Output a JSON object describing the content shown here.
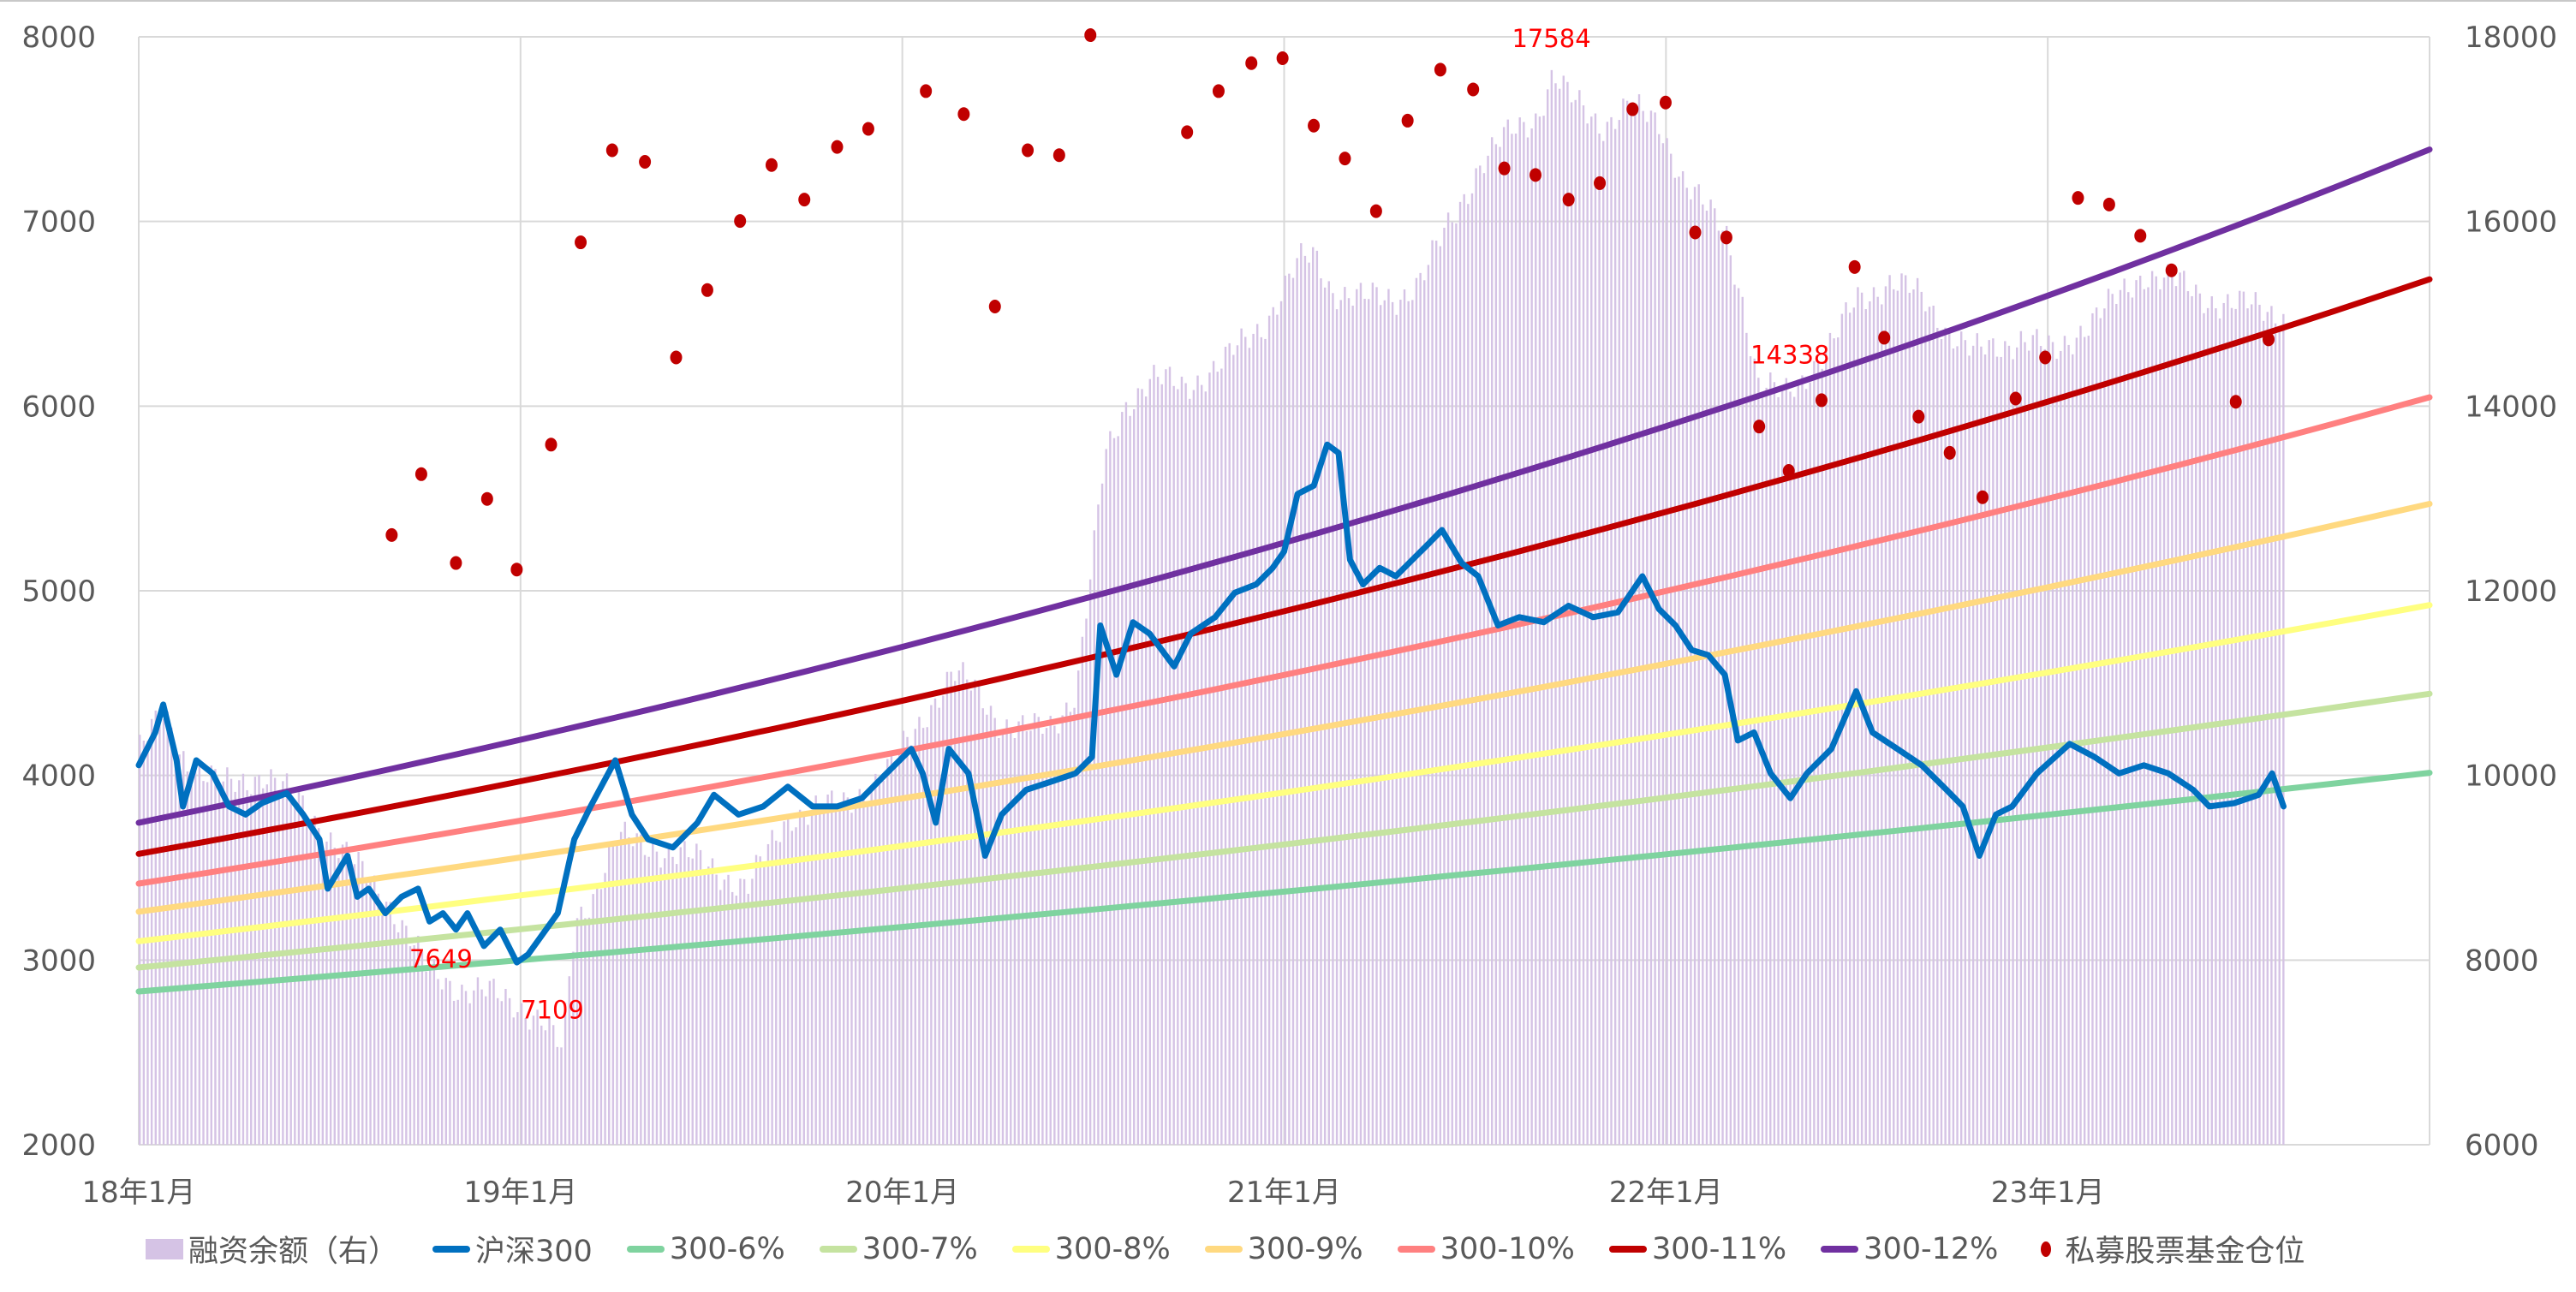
{
  "chart_data": {
    "type": "line",
    "title": "",
    "x_axis": {
      "unit": "months since 2018-01",
      "range": [
        0,
        72
      ],
      "ticks": [
        {
          "month": 0,
          "label": "18年1月"
        },
        {
          "month": 12,
          "label": "19年1月"
        },
        {
          "month": 24,
          "label": "20年1月"
        },
        {
          "month": 36,
          "label": "21年1月"
        },
        {
          "month": 48,
          "label": "22年1月"
        },
        {
          "month": 60,
          "label": "23年1月"
        }
      ]
    },
    "y_left": {
      "range": [
        2000,
        8000
      ],
      "ticks": [
        2000,
        3000,
        4000,
        5000,
        6000,
        7000,
        8000
      ]
    },
    "y_right": {
      "range": [
        6000,
        18000
      ],
      "ticks": [
        6000,
        8000,
        10000,
        12000,
        14000,
        16000,
        18000
      ]
    },
    "grid": true,
    "legend_position": "bottom",
    "series": [
      {
        "name": "融资余额（右）",
        "type": "bar",
        "axis": "right",
        "color": "#d5c3e5",
        "points": [
          [
            0,
            10289
          ],
          [
            0.77,
            10645
          ],
          [
            1.55,
            10111
          ],
          [
            2.58,
            9879
          ],
          [
            3.87,
            10022
          ],
          [
            5.17,
            9665
          ],
          [
            6.46,
            9131
          ],
          [
            7.75,
            8686
          ],
          [
            9.04,
            7885
          ],
          [
            10.07,
            7707
          ],
          [
            11.1,
            7618
          ],
          [
            11.88,
            7529
          ],
          [
            12.65,
            7350
          ],
          [
            13.27,
            6994
          ],
          [
            13.69,
            8419
          ],
          [
            14.2,
            8686
          ],
          [
            14.98,
            9309
          ],
          [
            16.27,
            9220
          ],
          [
            17.82,
            9042
          ],
          [
            19.11,
            8775
          ],
          [
            20.4,
            9576
          ],
          [
            21.95,
            9665
          ],
          [
            23.5,
            10022
          ],
          [
            24.79,
            10734
          ],
          [
            25.57,
            11090
          ],
          [
            26.34,
            10912
          ],
          [
            27.12,
            10556
          ],
          [
            27.89,
            10467
          ],
          [
            28.67,
            10556
          ],
          [
            29.44,
            10912
          ],
          [
            29.96,
            12337
          ],
          [
            30.32,
            13405
          ],
          [
            30.99,
            14029
          ],
          [
            31.77,
            14296
          ],
          [
            32.8,
            14207
          ],
          [
            34.09,
            14474
          ],
          [
            35.38,
            14919
          ],
          [
            36.42,
            15542
          ],
          [
            36.93,
            15631
          ],
          [
            37.45,
            15275
          ],
          [
            38.48,
            15150
          ],
          [
            39.51,
            15186
          ],
          [
            40.29,
            15364
          ],
          [
            41.06,
            15898
          ],
          [
            42.1,
            16611
          ],
          [
            43.13,
            16967
          ],
          [
            43.9,
            17145
          ],
          [
            44.42,
            17590
          ],
          [
            44.94,
            17323
          ],
          [
            45.97,
            17056
          ],
          [
            46.75,
            17234
          ],
          [
            47.78,
            17056
          ],
          [
            48.55,
            16433
          ],
          [
            49.33,
            16077
          ],
          [
            49.85,
            15898
          ],
          [
            50.36,
            15186
          ],
          [
            50.88,
            14207
          ],
          [
            51.65,
            14118
          ],
          [
            52.43,
            14385
          ],
          [
            53.2,
            14652
          ],
          [
            53.98,
            15186
          ],
          [
            55.01,
            15329
          ],
          [
            56.04,
            15186
          ],
          [
            56.82,
            14830
          ],
          [
            57.59,
            14563
          ],
          [
            58.37,
            14652
          ],
          [
            59.14,
            14741
          ],
          [
            60.17,
            14563
          ],
          [
            60.95,
            14830
          ],
          [
            61.98,
            15097
          ],
          [
            63.02,
            15453
          ],
          [
            63.79,
            15364
          ],
          [
            64.82,
            15186
          ],
          [
            65.86,
            15097
          ],
          [
            67.41,
            15008
          ]
        ]
      },
      {
        "name": "沪深300",
        "type": "line",
        "axis": "left",
        "color": "#0070c0",
        "points": [
          [
            0,
            4055
          ],
          [
            0.52,
            4233
          ],
          [
            0.77,
            4384
          ],
          [
            1.19,
            4082
          ],
          [
            1.39,
            3832
          ],
          [
            1.81,
            4082
          ],
          [
            2.32,
            4011
          ],
          [
            2.84,
            3832
          ],
          [
            3.36,
            3788
          ],
          [
            3.87,
            3850
          ],
          [
            4.65,
            3904
          ],
          [
            5.17,
            3788
          ],
          [
            5.68,
            3654
          ],
          [
            5.94,
            3387
          ],
          [
            6.56,
            3565
          ],
          [
            6.87,
            3343
          ],
          [
            7.23,
            3387
          ],
          [
            7.75,
            3254
          ],
          [
            8.26,
            3343
          ],
          [
            8.78,
            3387
          ],
          [
            9.14,
            3209
          ],
          [
            9.56,
            3254
          ],
          [
            9.97,
            3165
          ],
          [
            10.33,
            3254
          ],
          [
            10.85,
            3076
          ],
          [
            11.36,
            3165
          ],
          [
            11.88,
            2987
          ],
          [
            12.24,
            3031
          ],
          [
            13.17,
            3254
          ],
          [
            13.69,
            3654
          ],
          [
            14.2,
            3832
          ],
          [
            14.98,
            4082
          ],
          [
            15.5,
            3788
          ],
          [
            16.01,
            3654
          ],
          [
            16.79,
            3610
          ],
          [
            17.56,
            3744
          ],
          [
            18.08,
            3895
          ],
          [
            18.85,
            3788
          ],
          [
            19.63,
            3832
          ],
          [
            20.4,
            3939
          ],
          [
            21.18,
            3832
          ],
          [
            21.95,
            3832
          ],
          [
            22.73,
            3877
          ],
          [
            23.5,
            4011
          ],
          [
            24.28,
            4144
          ],
          [
            24.64,
            4011
          ],
          [
            25.05,
            3744
          ],
          [
            25.46,
            4144
          ],
          [
            26.08,
            4011
          ],
          [
            26.6,
            3565
          ],
          [
            27.12,
            3788
          ],
          [
            27.89,
            3922
          ],
          [
            28.67,
            3966
          ],
          [
            29.44,
            4011
          ],
          [
            29.96,
            4100
          ],
          [
            30.22,
            4812
          ],
          [
            30.73,
            4545
          ],
          [
            31.25,
            4830
          ],
          [
            31.77,
            4768
          ],
          [
            32.54,
            4590
          ],
          [
            33.06,
            4768
          ],
          [
            33.83,
            4857
          ],
          [
            34.45,
            4990
          ],
          [
            35.12,
            5035
          ],
          [
            35.64,
            5124
          ],
          [
            36,
            5213
          ],
          [
            36.42,
            5524
          ],
          [
            36.93,
            5569
          ],
          [
            37.35,
            5792
          ],
          [
            37.71,
            5747
          ],
          [
            38.07,
            5168
          ],
          [
            38.48,
            5035
          ],
          [
            39,
            5124
          ],
          [
            39.51,
            5079
          ],
          [
            40.03,
            5168
          ],
          [
            40.55,
            5257
          ],
          [
            40.96,
            5329
          ],
          [
            41.58,
            5150
          ],
          [
            42.1,
            5079
          ],
          [
            42.72,
            4812
          ],
          [
            43.39,
            4857
          ],
          [
            44.16,
            4830
          ],
          [
            44.94,
            4919
          ],
          [
            45.71,
            4857
          ],
          [
            46.49,
            4883
          ],
          [
            47.26,
            5079
          ],
          [
            47.78,
            4901
          ],
          [
            48.3,
            4812
          ],
          [
            48.81,
            4679
          ],
          [
            49.33,
            4652
          ],
          [
            49.85,
            4545
          ],
          [
            50.26,
            4189
          ],
          [
            50.77,
            4233
          ],
          [
            51.29,
            4011
          ],
          [
            51.91,
            3877
          ],
          [
            52.43,
            4011
          ],
          [
            53.2,
            4144
          ],
          [
            53.98,
            4456
          ],
          [
            54.49,
            4233
          ],
          [
            55.27,
            4144
          ],
          [
            56.04,
            4055
          ],
          [
            56.82,
            3922
          ],
          [
            57.33,
            3832
          ],
          [
            57.85,
            3565
          ],
          [
            58.37,
            3788
          ],
          [
            58.88,
            3832
          ],
          [
            59.66,
            4011
          ],
          [
            60.69,
            4171
          ],
          [
            61.47,
            4100
          ],
          [
            62.24,
            4011
          ],
          [
            63.02,
            4055
          ],
          [
            63.79,
            4011
          ],
          [
            64.57,
            3922
          ],
          [
            65.08,
            3832
          ],
          [
            65.86,
            3850
          ],
          [
            66.63,
            3895
          ],
          [
            67.05,
            4011
          ],
          [
            67.41,
            3832
          ]
        ]
      },
      {
        "name": "300-6%",
        "type": "growth",
        "axis": "left",
        "color": "#7fd39f",
        "rate": 0.06,
        "start": 2830,
        "range_months": [
          0,
          72
        ]
      },
      {
        "name": "300-7%",
        "type": "growth",
        "axis": "left",
        "color": "#c5e3a0",
        "rate": 0.07,
        "start": 2960,
        "range_months": [
          0,
          72
        ]
      },
      {
        "name": "300-8%",
        "type": "growth",
        "axis": "left",
        "color": "#ffff80",
        "rate": 0.08,
        "start": 3102,
        "range_months": [
          0,
          72
        ]
      },
      {
        "name": "300-9%",
        "type": "growth",
        "axis": "left",
        "color": "#ffd980",
        "rate": 0.09,
        "start": 3262,
        "range_months": [
          0,
          72
        ]
      },
      {
        "name": "300-10%",
        "type": "growth",
        "axis": "left",
        "color": "#ff8080",
        "rate": 0.1,
        "start": 3414,
        "range_months": [
          0,
          72
        ]
      },
      {
        "name": "300-11%",
        "type": "growth",
        "axis": "left",
        "color": "#c00000",
        "rate": 0.11,
        "start": 3575,
        "range_months": [
          0,
          72
        ]
      },
      {
        "name": "300-12%",
        "type": "growth",
        "axis": "left",
        "color": "#7030a0",
        "rate": 0.12,
        "start": 3744,
        "range_months": [
          0,
          72
        ]
      },
      {
        "name": "私募股票基金仓位",
        "type": "scatter",
        "axis": "right",
        "color": "#c00000",
        "points": [
          [
            7.95,
            12604
          ],
          [
            8.88,
            13263
          ],
          [
            9.97,
            12301
          ],
          [
            10.95,
            12995
          ],
          [
            11.88,
            12230
          ],
          [
            12.96,
            13583
          ],
          [
            13.89,
            15774
          ],
          [
            14.88,
            16771
          ],
          [
            15.91,
            16646
          ],
          [
            16.89,
            14527
          ],
          [
            17.87,
            15257
          ],
          [
            18.9,
            16005
          ],
          [
            19.89,
            16611
          ],
          [
            20.92,
            16237
          ],
          [
            21.95,
            16807
          ],
          [
            22.93,
            17003
          ],
          [
            24.74,
            17412
          ],
          [
            25.93,
            17163
          ],
          [
            26.91,
            15079
          ],
          [
            27.94,
            16771
          ],
          [
            28.93,
            16718
          ],
          [
            29.91,
            18018
          ],
          [
            32.95,
            16967
          ],
          [
            33.94,
            17412
          ],
          [
            34.97,
            17715
          ],
          [
            35.95,
            17768
          ],
          [
            36.93,
            17038
          ],
          [
            37.91,
            16682
          ],
          [
            38.89,
            16112
          ],
          [
            39.88,
            17092
          ],
          [
            40.91,
            17644
          ],
          [
            41.94,
            17430
          ],
          [
            42.92,
            16575
          ],
          [
            43.9,
            16504
          ],
          [
            44.94,
            16237
          ],
          [
            45.92,
            16415
          ],
          [
            46.95,
            17216
          ],
          [
            47.99,
            17288
          ],
          [
            48.92,
            15881
          ],
          [
            49.9,
            15827
          ],
          [
            50.93,
            13779
          ],
          [
            51.86,
            13298
          ],
          [
            52.89,
            14064
          ],
          [
            53.93,
            15507
          ],
          [
            54.86,
            14741
          ],
          [
            55.94,
            13886
          ],
          [
            56.92,
            13494
          ],
          [
            57.95,
            13013
          ],
          [
            58.99,
            14082
          ],
          [
            59.92,
            14527
          ],
          [
            60.95,
            16255
          ],
          [
            61.93,
            16184
          ],
          [
            62.91,
            15845
          ],
          [
            63.89,
            15471
          ],
          [
            65.91,
            14047
          ],
          [
            66.94,
            14723
          ]
        ]
      }
    ],
    "annotations": [
      {
        "text": "17584",
        "month": 44.4,
        "axis": "right",
        "value": 17890
      },
      {
        "text": "14338",
        "month": 51.9,
        "axis": "right",
        "value": 14460
      },
      {
        "text": "7649",
        "month": 9.5,
        "axis": "right",
        "value": 7920
      },
      {
        "text": "7109",
        "month": 13.0,
        "axis": "right",
        "value": 7370
      }
    ]
  },
  "legend": [
    {
      "label": "融资余额（右）",
      "kind": "bar",
      "color": "#d5c3e5"
    },
    {
      "label": "沪深300",
      "kind": "line",
      "color": "#0070c0"
    },
    {
      "label": "300-6%",
      "kind": "line",
      "color": "#7fd39f"
    },
    {
      "label": "300-7%",
      "kind": "line",
      "color": "#c5e3a0"
    },
    {
      "label": "300-8%",
      "kind": "line",
      "color": "#ffff80"
    },
    {
      "label": "300-9%",
      "kind": "line",
      "color": "#ffd980"
    },
    {
      "label": "300-10%",
      "kind": "line",
      "color": "#ff8080"
    },
    {
      "label": "300-11%",
      "kind": "line",
      "color": "#c00000"
    },
    {
      "label": "300-12%",
      "kind": "line",
      "color": "#7030a0"
    },
    {
      "label": "私募股票基金仓位",
      "kind": "dot",
      "color": "#c00000"
    }
  ]
}
